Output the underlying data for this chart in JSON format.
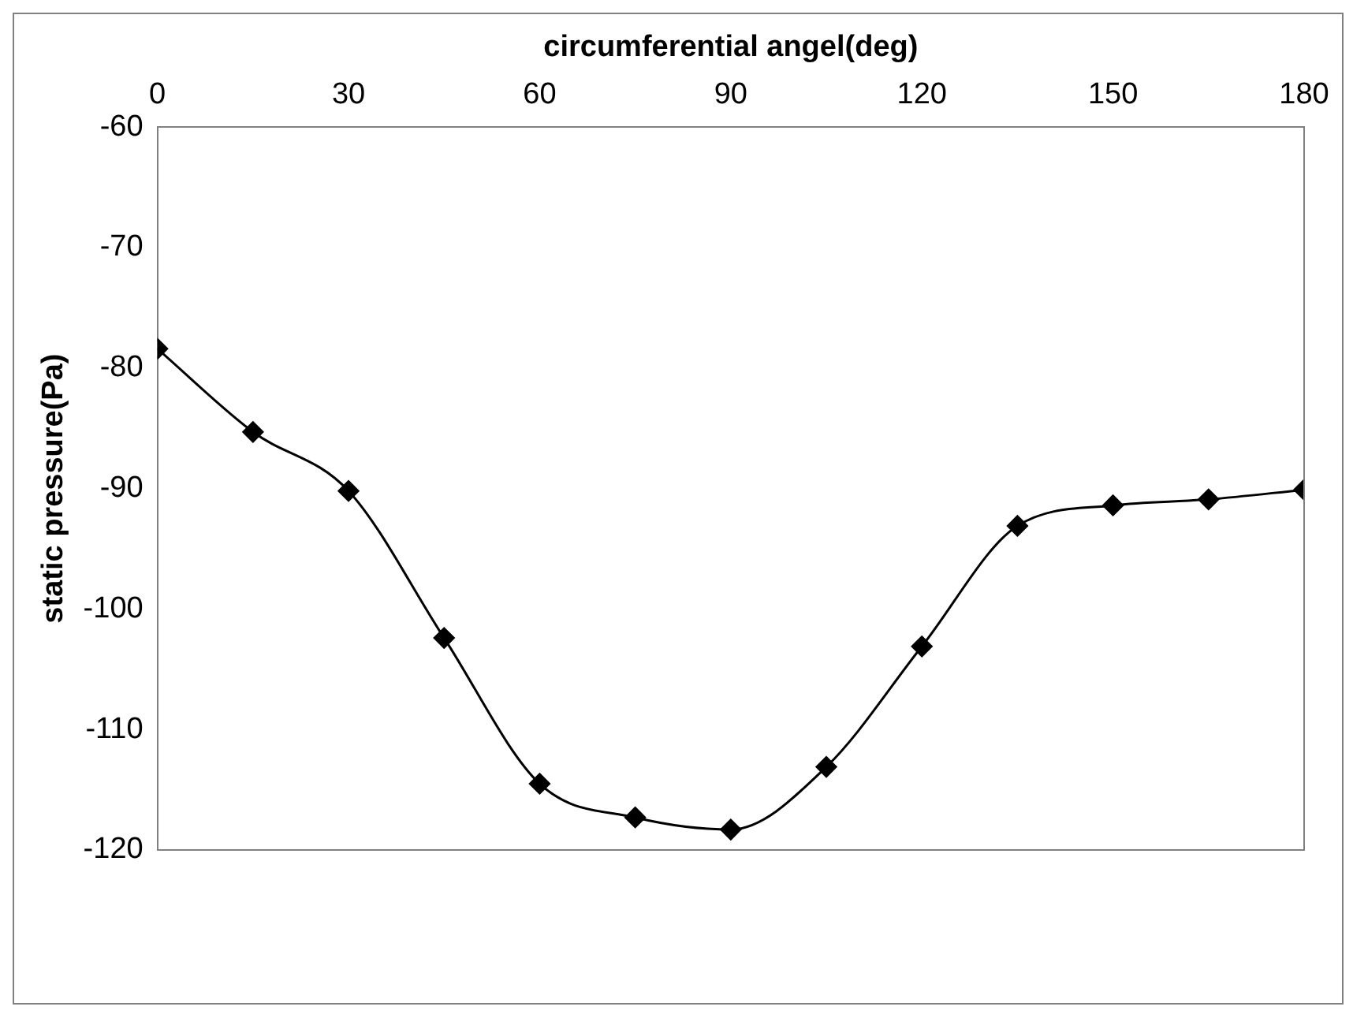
{
  "chart_data": {
    "type": "line",
    "xlabel": "circumferential angel(deg)",
    "ylabel": "static pressure(Pa)",
    "x": [
      0,
      15,
      30,
      45,
      60,
      75,
      90,
      105,
      120,
      135,
      150,
      165,
      180
    ],
    "series": [
      {
        "color": "#000000",
        "values": [
          -78.4,
          -85.3,
          -90.2,
          -102.4,
          -114.5,
          -117.3,
          -118.3,
          -113.1,
          -103.1,
          -93.1,
          -91.4,
          -90.9,
          -90.1
        ]
      }
    ],
    "xlim": [
      0,
      180
    ],
    "xticks": [
      0,
      30,
      60,
      90,
      120,
      150,
      180
    ],
    "ylim": [
      -120,
      -60
    ],
    "yticks": [
      -120,
      -110,
      -100,
      -90,
      -80,
      -70,
      -60
    ],
    "grid": false,
    "legend": false,
    "marker": "diamond",
    "line_style": "solid"
  }
}
